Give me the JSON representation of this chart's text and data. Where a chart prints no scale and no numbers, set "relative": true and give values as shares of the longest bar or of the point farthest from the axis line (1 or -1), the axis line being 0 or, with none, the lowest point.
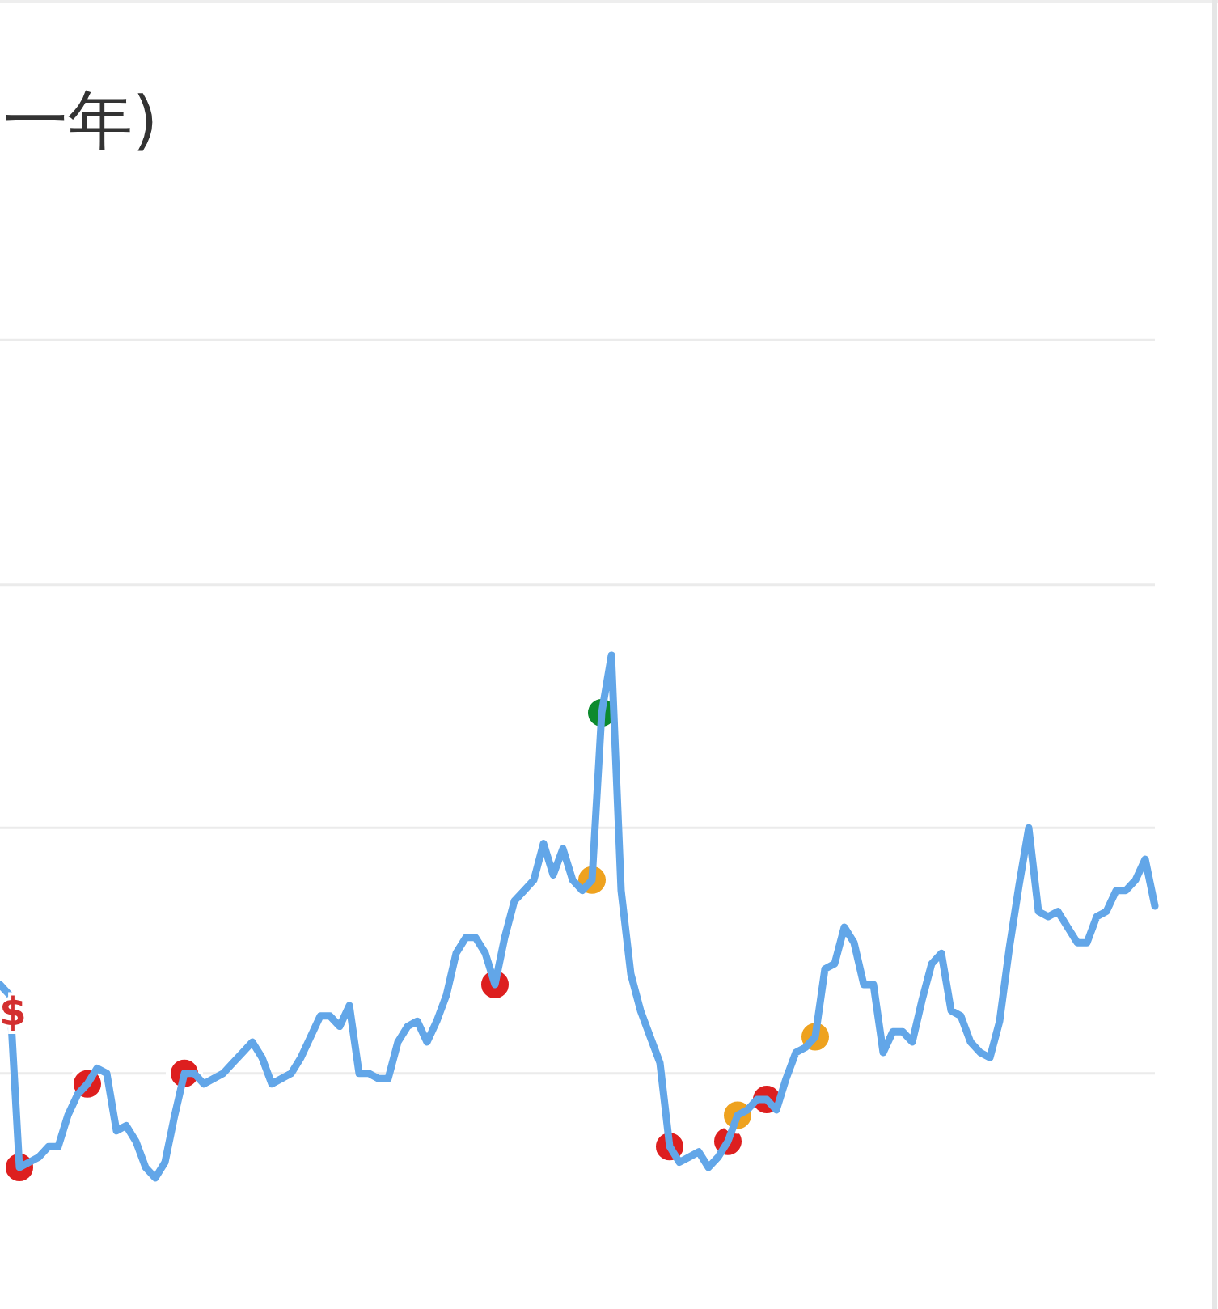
{
  "chart_data": {
    "type": "line",
    "title": "一年)",
    "relative": true,
    "line_style": "solid",
    "categories": [
      null,
      null,
      null,
      null,
      null,
      null,
      null,
      null,
      null,
      null,
      null,
      null,
      null,
      null,
      null,
      null,
      null,
      null,
      null,
      null,
      null,
      null,
      null,
      null,
      null,
      null,
      null,
      null,
      null,
      null,
      null,
      null,
      null,
      null,
      null,
      null,
      null,
      null,
      null,
      null,
      null,
      null,
      null,
      null,
      null,
      null,
      null,
      null,
      null,
      null,
      null,
      null,
      null,
      null,
      null,
      null,
      null,
      null,
      null,
      null,
      null,
      null,
      null,
      null,
      null,
      null,
      null,
      null,
      null,
      null,
      null,
      null,
      null,
      null,
      null,
      null,
      null,
      null,
      null,
      null,
      null,
      null,
      null,
      null,
      null,
      null,
      null,
      null,
      null,
      null,
      null,
      null,
      null,
      null,
      null,
      null,
      null,
      null,
      null,
      null,
      null,
      null,
      null,
      null,
      null,
      null,
      null,
      null,
      null,
      null,
      null,
      null,
      null,
      null,
      null,
      null,
      null,
      null,
      null,
      null
    ],
    "series": [
      {
        "color": "#62a6e8",
        "colors": [
          null,
          null,
          "#dd1f1f",
          null,
          null,
          null,
          null,
          null,
          null,
          "#dd1f1f",
          null,
          null,
          null,
          null,
          null,
          null,
          null,
          null,
          null,
          "#dd1f1f",
          null,
          null,
          null,
          null,
          null,
          null,
          null,
          null,
          null,
          null,
          null,
          null,
          null,
          null,
          null,
          null,
          null,
          null,
          null,
          null,
          null,
          null,
          null,
          null,
          null,
          null,
          null,
          null,
          null,
          null,
          null,
          "#dd1f1f",
          null,
          null,
          null,
          null,
          null,
          null,
          null,
          null,
          null,
          "#eea21f",
          "#0d8a2e",
          null,
          null,
          null,
          null,
          null,
          null,
          "#dd1f1f",
          null,
          null,
          null,
          null,
          null,
          "#dd1f1f",
          "#eea21f",
          null,
          null,
          "#dd1f1f",
          null,
          null,
          null,
          null,
          "#eea21f",
          null,
          null,
          null,
          null,
          null,
          null,
          null,
          null,
          null,
          null,
          null,
          null,
          null,
          null,
          null,
          null,
          null,
          null,
          null,
          null,
          null,
          null,
          null,
          null,
          null,
          null,
          null,
          null,
          null,
          null,
          null,
          null,
          null,
          null,
          null
        ],
        "values": [
          0.37,
          0.35,
          0.02,
          0.03,
          0.04,
          0.06,
          0.06,
          0.12,
          0.16,
          0.18,
          0.21,
          0.2,
          0.09,
          0.1,
          0.07,
          0.02,
          0,
          0.03,
          0.12,
          0.2,
          0.2,
          0.18,
          0.19,
          0.2,
          0.22,
          0.24,
          0.26,
          0.23,
          0.18,
          0.19,
          0.2,
          0.23,
          0.27,
          0.31,
          0.31,
          0.29,
          0.33,
          0.2,
          0.2,
          0.19,
          0.19,
          0.26,
          0.29,
          0.3,
          0.26,
          0.3,
          0.35,
          0.43,
          0.46,
          0.46,
          0.43,
          0.37,
          0.46,
          0.53,
          0.55,
          0.57,
          0.64,
          0.58,
          0.63,
          0.57,
          0.55,
          0.57,
          0.89,
          1,
          0.55,
          0.39,
          0.32,
          0.27,
          0.22,
          0.06,
          0.03,
          0.04,
          0.05,
          0.02,
          0.04,
          0.07,
          0.12,
          0.13,
          0.15,
          0.15,
          0.13,
          0.19,
          0.24,
          0.25,
          0.27,
          0.4,
          0.41,
          0.48,
          0.45,
          0.37,
          0.37,
          0.24,
          0.28,
          0.28,
          0.26,
          0.34,
          0.41,
          0.43,
          0.32,
          0.31,
          0.26,
          0.24,
          0.23,
          0.3,
          0.44,
          0.56,
          0.67,
          0.51,
          0.5,
          0.51,
          0.48,
          0.45,
          0.45,
          0.5,
          0.51,
          0.55,
          0.55,
          0.57,
          0.61,
          0.52
        ]
      }
    ],
    "ref_lines": [
      {
        "axis": "y",
        "value": 0.2,
        "color": "#ebebeb"
      },
      {
        "axis": "y",
        "value": 0.67,
        "color": "#ebebeb"
      }
    ],
    "annotations": [
      "$"
    ]
  }
}
